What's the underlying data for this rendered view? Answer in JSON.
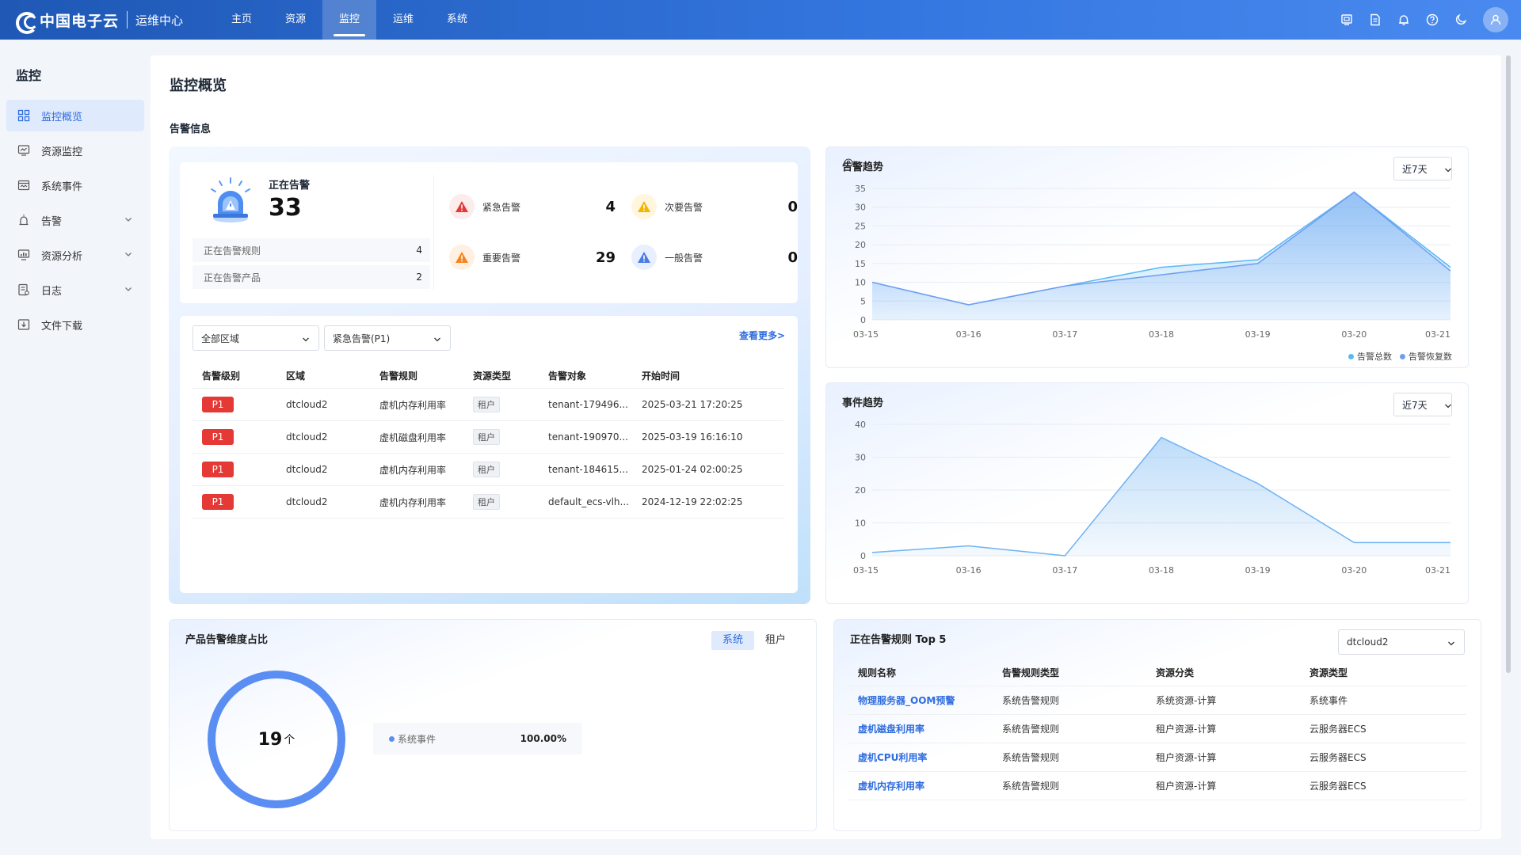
{
  "header": {
    "brand": "中国电子云",
    "subtitle": "运维中心",
    "nav": [
      {
        "label": "主页",
        "active": false
      },
      {
        "label": "资源",
        "active": false
      },
      {
        "label": "监控",
        "active": true
      },
      {
        "label": "运维",
        "active": false
      },
      {
        "label": "系统",
        "active": false
      }
    ],
    "icons": [
      "screen-icon",
      "document-icon",
      "bell-icon",
      "help-icon",
      "moon-icon",
      "user-icon"
    ]
  },
  "sidebar": {
    "title": "监控",
    "items": [
      {
        "label": "监控概览",
        "icon": "grid-icon",
        "active": true,
        "expandable": false
      },
      {
        "label": "资源监控",
        "icon": "monitor-icon",
        "active": false,
        "expandable": false
      },
      {
        "label": "系统事件",
        "icon": "event-icon",
        "active": false,
        "expandable": false
      },
      {
        "label": "告警",
        "icon": "alarm-icon",
        "active": false,
        "expandable": true
      },
      {
        "label": "资源分析",
        "icon": "analysis-icon",
        "active": false,
        "expandable": true
      },
      {
        "label": "日志",
        "icon": "log-icon",
        "active": false,
        "expandable": true
      },
      {
        "label": "文件下载",
        "icon": "download-icon",
        "active": false,
        "expandable": false
      }
    ]
  },
  "page": {
    "title": "监控概览",
    "section_title": "告警信息"
  },
  "alert_summary": {
    "now_label": "正在告警",
    "now_count": "33",
    "rules_label": "正在告警规则",
    "rules_count": "4",
    "products_label": "正在告警产品",
    "products_count": "2",
    "levels": [
      {
        "label": "紧急告警",
        "value": "4",
        "color": "#e53935",
        "bg": "#fdecec"
      },
      {
        "label": "次要告警",
        "value": "0",
        "color": "#f5b400",
        "bg": "#fff6dd"
      },
      {
        "label": "重要告警",
        "value": "29",
        "color": "#f5841f",
        "bg": "#fff0e2"
      },
      {
        "label": "一般告警",
        "value": "0",
        "color": "#4a7be6",
        "bg": "#e8efff"
      }
    ]
  },
  "alert_table": {
    "region_select": "全部区域",
    "level_select": "紧急告警(P1)",
    "more": "查看更多>",
    "columns": [
      "告警级别",
      "区域",
      "告警规则",
      "资源类型",
      "告警对象",
      "开始时间"
    ],
    "rows": [
      {
        "level": "P1",
        "region": "dtcloud2",
        "rule": "虚机内存利用率",
        "type": "租户",
        "target": "tenant-179496...",
        "time": "2025-03-21 17:20:25"
      },
      {
        "level": "P1",
        "region": "dtcloud2",
        "rule": "虚机磁盘利用率",
        "type": "租户",
        "target": "tenant-190970...",
        "time": "2025-03-19 16:16:10"
      },
      {
        "level": "P1",
        "region": "dtcloud2",
        "rule": "虚机内存利用率",
        "type": "租户",
        "target": "tenant-184615...",
        "time": "2025-01-24 02:00:25"
      },
      {
        "level": "P1",
        "region": "dtcloud2",
        "rule": "虚机内存利用率",
        "type": "租户",
        "target": "default_ecs-vlh...",
        "time": "2024-12-19 22:02:25"
      }
    ]
  },
  "alert_trend": {
    "title": "告警趋势",
    "period": "近7天",
    "chart_data": {
      "type": "area",
      "categories": [
        "03-15",
        "03-16",
        "03-17",
        "03-18",
        "03-19",
        "03-20",
        "03-21"
      ],
      "series": [
        {
          "name": "告警总数",
          "values": [
            10,
            4,
            9,
            14,
            16,
            34,
            14
          ],
          "color": "#5ab8f5"
        },
        {
          "name": "告警恢复数",
          "values": [
            10,
            4,
            9,
            12,
            15,
            34,
            13
          ],
          "color": "#6f9ef0"
        }
      ],
      "ylim": [
        0,
        35
      ],
      "yticks": [
        0,
        5,
        10,
        15,
        20,
        25,
        30,
        35
      ],
      "legend": "bottom-right",
      "grid": true
    }
  },
  "event_trend": {
    "title": "事件趋势",
    "period": "近7天",
    "chart_data": {
      "type": "area",
      "categories": [
        "03-15",
        "03-16",
        "03-17",
        "03-18",
        "03-19",
        "03-20",
        "03-21"
      ],
      "series": [
        {
          "values": [
            1,
            3,
            0,
            36,
            22,
            4,
            4
          ],
          "color": "#6fb2f2"
        }
      ],
      "ylim": [
        0,
        40
      ],
      "yticks": [
        0,
        10,
        20,
        30,
        40
      ],
      "grid": true
    }
  },
  "product_ratio": {
    "title": "产品告警维度占比",
    "tabs": [
      {
        "label": "系统",
        "active": true
      },
      {
        "label": "租户",
        "active": false
      }
    ],
    "total": "19",
    "unit": "个",
    "legend": [
      {
        "name": "系统事件",
        "pct": "100.00%",
        "color": "#5b8ef3"
      }
    ]
  },
  "top5": {
    "title": "正在告警规则 Top 5",
    "region": "dtcloud2",
    "columns": [
      "规则名称",
      "告警规则类型",
      "资源分类",
      "资源类型"
    ],
    "rows": [
      {
        "name": "物理服务器_OOM预警",
        "rule_type": "系统告警规则",
        "category": "系统资源-计算",
        "res_type": "系统事件"
      },
      {
        "name": "虚机磁盘利用率",
        "rule_type": "系统告警规则",
        "category": "租户资源-计算",
        "res_type": "云服务器ECS"
      },
      {
        "name": "虚机CPU利用率",
        "rule_type": "系统告警规则",
        "category": "租户资源-计算",
        "res_type": "云服务器ECS"
      },
      {
        "name": "虚机内存利用率",
        "rule_type": "系统告警规则",
        "category": "租户资源-计算",
        "res_type": "云服务器ECS"
      }
    ]
  }
}
